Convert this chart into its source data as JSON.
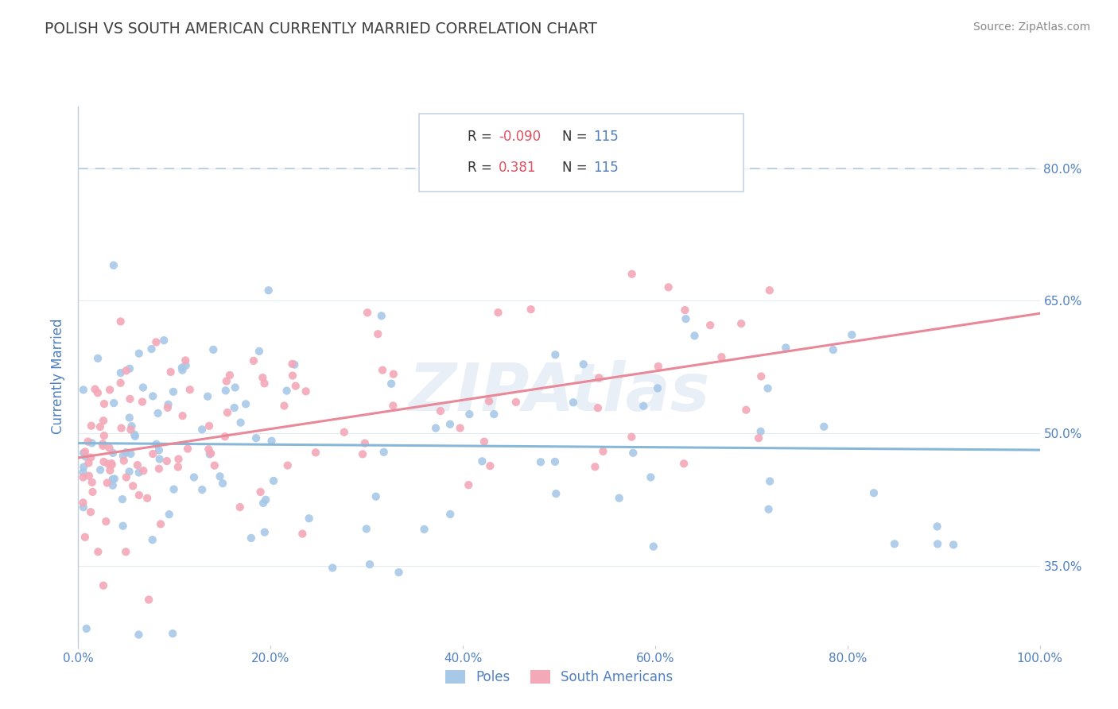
{
  "title": "POLISH VS SOUTH AMERICAN CURRENTLY MARRIED CORRELATION CHART",
  "source_text": "Source: ZipAtlas.com",
  "ylabel": "Currently Married",
  "legend_labels": [
    "Poles",
    "South Americans"
  ],
  "blue_color": "#a8c8e8",
  "pink_color": "#f4a8b8",
  "blue_line_color": "#88b8d8",
  "pink_line_color": "#e88898",
  "dashed_line_color": "#b8cce4",
  "r_neg_color": "#e05060",
  "r_pos_color": "#e05060",
  "n_color": "#5080c0",
  "label_text_color": "#5080c0",
  "title_color": "#404040",
  "source_color": "#888888",
  "watermark_color": "#c8d8ec",
  "xlim": [
    0.0,
    1.0
  ],
  "ylim": [
    0.26,
    0.87
  ],
  "xtick_positions": [
    0.0,
    0.2,
    0.4,
    0.6,
    0.8,
    1.0
  ],
  "xtick_labels": [
    "0.0%",
    "20.0%",
    "40.0%",
    "60.0%",
    "80.0%",
    "100.0%"
  ],
  "ytick_positions": [
    0.35,
    0.5,
    0.65,
    0.8
  ],
  "ytick_labels": [
    "35.0%",
    "50.0%",
    "65.0%",
    "80.0%"
  ],
  "blue_R": -0.09,
  "pink_R": 0.381,
  "N": 115
}
